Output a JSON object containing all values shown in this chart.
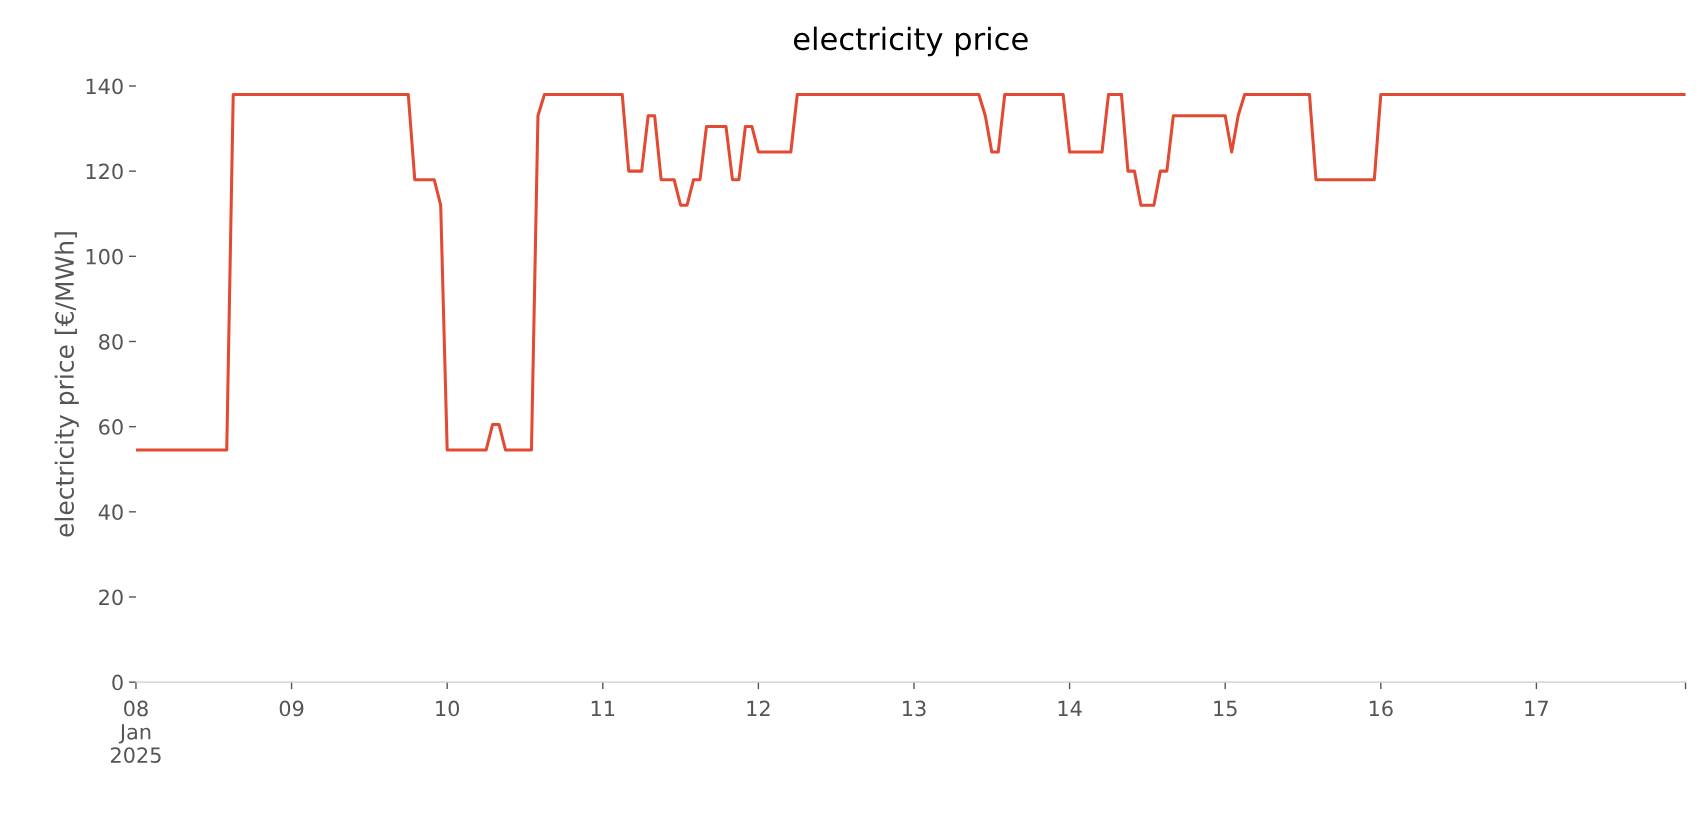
{
  "chart_data": {
    "type": "line",
    "title": "electricity price",
    "ylabel": "electricity price [€/MWh]",
    "x": [
      "2025-01-08T00:00",
      "2025-01-08T14:00",
      "2025-01-08T15:00",
      "2025-01-09T18:00",
      "2025-01-09T19:00",
      "2025-01-09T22:00",
      "2025-01-09T23:00",
      "2025-01-10T00:00",
      "2025-01-10T06:00",
      "2025-01-10T07:00",
      "2025-01-10T08:00",
      "2025-01-10T09:00",
      "2025-01-10T13:00",
      "2025-01-10T14:00",
      "2025-01-10T15:00",
      "2025-01-11T03:00",
      "2025-01-11T04:00",
      "2025-01-11T06:00",
      "2025-01-11T07:00",
      "2025-01-11T08:00",
      "2025-01-11T09:00",
      "2025-01-11T11:00",
      "2025-01-11T12:00",
      "2025-01-11T13:00",
      "2025-01-11T14:00",
      "2025-01-11T15:00",
      "2025-01-11T16:00",
      "2025-01-11T19:00",
      "2025-01-11T20:00",
      "2025-01-11T21:00",
      "2025-01-11T22:00",
      "2025-01-11T23:00",
      "2025-01-12T00:00",
      "2025-01-12T05:00",
      "2025-01-12T06:00",
      "2025-01-13T10:00",
      "2025-01-13T11:00",
      "2025-01-13T12:00",
      "2025-01-13T13:00",
      "2025-01-13T14:00",
      "2025-01-13T23:00",
      "2025-01-14T00:00",
      "2025-01-14T05:00",
      "2025-01-14T06:00",
      "2025-01-14T08:00",
      "2025-01-14T09:00",
      "2025-01-14T10:00",
      "2025-01-14T11:00",
      "2025-01-14T13:00",
      "2025-01-14T14:00",
      "2025-01-14T15:00",
      "2025-01-14T16:00",
      "2025-01-15T00:00",
      "2025-01-15T01:00",
      "2025-01-15T02:00",
      "2025-01-15T03:00",
      "2025-01-15T13:00",
      "2025-01-15T14:00",
      "2025-01-15T23:00",
      "2025-01-16T00:00",
      "2025-01-17T23:00"
    ],
    "series": [
      {
        "color": "#e24a33",
        "values": [
          54.5,
          54.5,
          138,
          138,
          118,
          118,
          112,
          54.5,
          54.5,
          60.5,
          60.5,
          54.5,
          54.5,
          133,
          138,
          138,
          120,
          120,
          133,
          133,
          118,
          118,
          112,
          112,
          118,
          118,
          130.5,
          130.5,
          118,
          118,
          130.5,
          130.5,
          124.5,
          124.5,
          138,
          138,
          133,
          124.5,
          124.5,
          138,
          138,
          124.5,
          124.5,
          138,
          138,
          120,
          120,
          112,
          112,
          120,
          120,
          133,
          133,
          124.5,
          133,
          138,
          138,
          118,
          118,
          138,
          138
        ]
      }
    ],
    "xlim": [
      "2025-01-08T00:00",
      "2025-01-17T23:00"
    ],
    "xticks": [
      {
        "value": "2025-01-08",
        "label": "08\nJan\n2025"
      },
      {
        "value": "2025-01-09",
        "label": "09"
      },
      {
        "value": "2025-01-10",
        "label": "10"
      },
      {
        "value": "2025-01-11",
        "label": "11"
      },
      {
        "value": "2025-01-12",
        "label": "12"
      },
      {
        "value": "2025-01-13",
        "label": "13"
      },
      {
        "value": "2025-01-14",
        "label": "14"
      },
      {
        "value": "2025-01-15",
        "label": "15"
      },
      {
        "value": "2025-01-16",
        "label": "16"
      },
      {
        "value": "2025-01-17",
        "label": "17"
      },
      {
        "value": "2025-01-17T23:00",
        "label": null
      }
    ],
    "ylim": [
      0,
      140
    ],
    "yticks": [
      0,
      20,
      40,
      60,
      80,
      100,
      120,
      140
    ],
    "grid": false,
    "legend": false,
    "marker": "none",
    "line_style": "solid"
  }
}
